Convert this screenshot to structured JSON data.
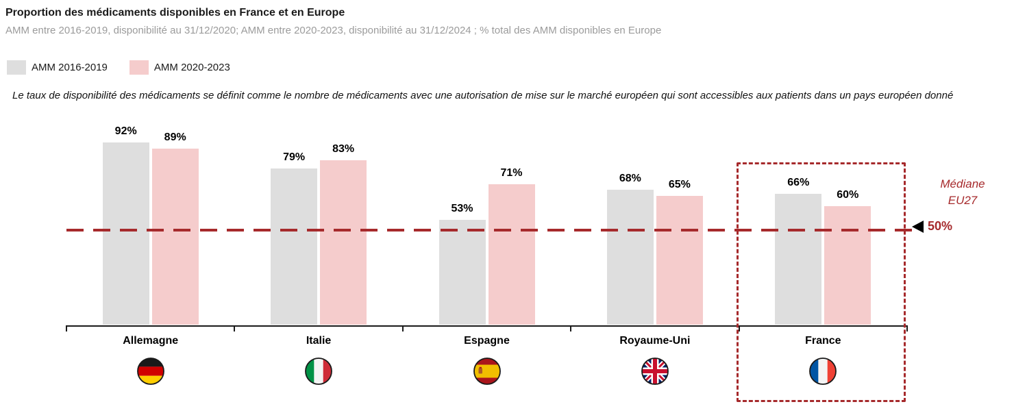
{
  "header": {
    "title": "Proportion des médicaments disponibles en France et en Europe",
    "subtitle": "AMM entre 2016-2019, disponibilité au 31/12/2020; AMM entre 2020-2023, disponibilité au 31/12/2024 ; % total des AMM disponibles en Europe"
  },
  "note": "Le taux de disponibilité des médicaments se définit comme le nombre de médicaments avec une autorisation de mise sur le marché européen qui sont accessibles aux patients dans un pays européen donné",
  "colors": {
    "series1": "#DEDEDE",
    "series2": "#F5CCCC",
    "median": "#A62A2C",
    "axis": "#1a1a1a"
  },
  "chart_data": {
    "type": "bar",
    "categories": [
      "Allemagne",
      "Italie",
      "Espagne",
      "Royaume-Uni",
      "France"
    ],
    "flags": [
      "de",
      "it",
      "es",
      "gb",
      "fr"
    ],
    "series": [
      {
        "name": "AMM 2016-2019",
        "color": "#DEDEDE",
        "values": [
          92,
          79,
          53,
          68,
          66
        ]
      },
      {
        "name": "AMM 2020-2023",
        "color": "#F5CCCC",
        "values": [
          89,
          83,
          71,
          65,
          60
        ]
      }
    ],
    "value_suffix": "%",
    "ylim": [
      0,
      100
    ],
    "grid": false,
    "legend_position": "top-left",
    "median_line": {
      "value": 50,
      "label": "Médiane\nEU27",
      "value_label": "50%",
      "color": "#A62A2C"
    },
    "highlight_country": "France"
  }
}
